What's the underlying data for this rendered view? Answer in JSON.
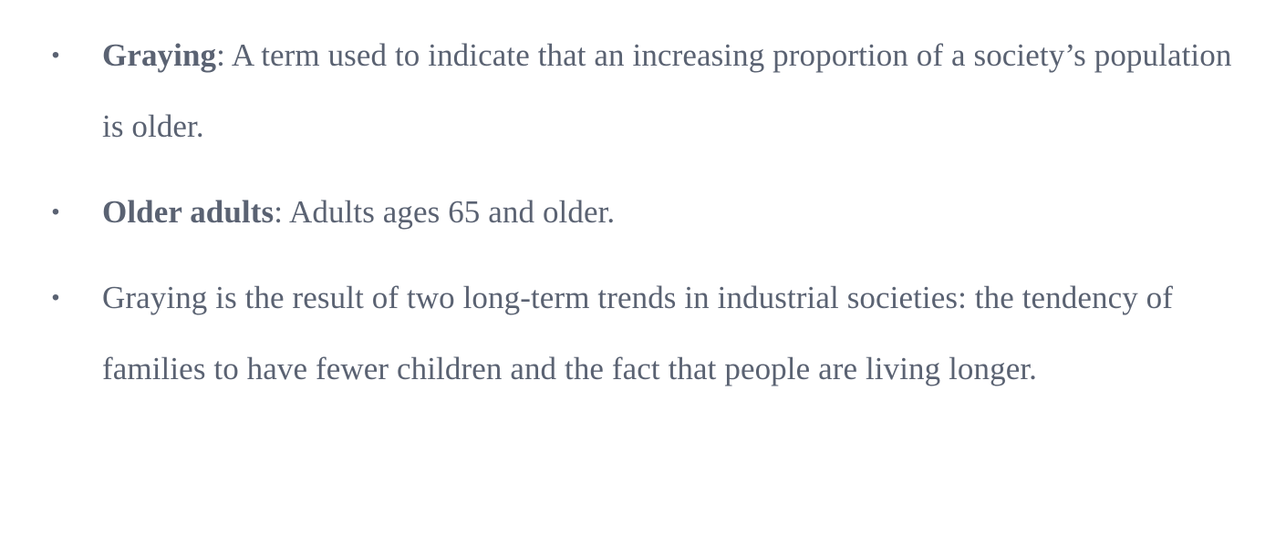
{
  "document": {
    "bullets": [
      {
        "term": "Graying",
        "text": ": A term used to indicate that an increasing proportion of a society’s population is older."
      },
      {
        "term": "Older adults",
        "text": ": Adults ages 65 and older."
      },
      {
        "term": "",
        "text": "Graying is the result of two long-term trends in industrial societies: the tendency of families to have fewer children and the fact that people are living longer."
      }
    ],
    "bullet_glyph": "•",
    "colors": {
      "text": "#5a6272",
      "background": "#ffffff"
    }
  }
}
